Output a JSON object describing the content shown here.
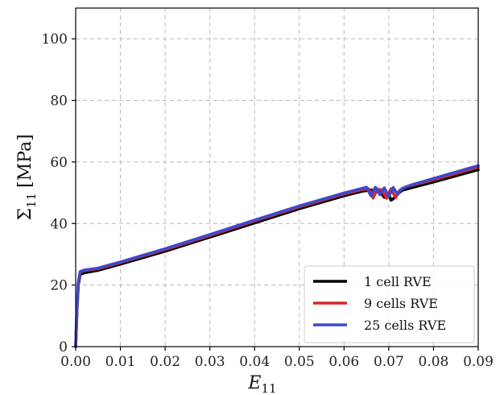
{
  "chart_data": {
    "type": "line",
    "title": "",
    "xlabel_main": "E",
    "xlabel_sub": "11",
    "ylabel_main": "Σ",
    "ylabel_sub": "11",
    "ylabel_unit": "[MPa]",
    "xlim": [
      0,
      0.09
    ],
    "ylim": [
      0,
      110
    ],
    "xticks": [
      "0.00",
      "0.01",
      "0.02",
      "0.03",
      "0.04",
      "0.05",
      "0.06",
      "0.07",
      "0.08",
      "0.09"
    ],
    "yticks": [
      "0",
      "20",
      "40",
      "60",
      "80",
      "100"
    ],
    "xtick_values": [
      0,
      0.01,
      0.02,
      0.03,
      0.04,
      0.05,
      0.06,
      0.07,
      0.08,
      0.09
    ],
    "ytick_values": [
      0,
      20,
      40,
      60,
      80,
      100
    ],
    "grid": true,
    "legend_position": "bottom-right",
    "series": [
      {
        "name": "1 cell RVE",
        "color": "#000000",
        "points": [
          [
            0,
            0
          ],
          [
            0.0003,
            12
          ],
          [
            0.0006,
            20
          ],
          [
            0.001,
            23.5
          ],
          [
            0.002,
            24.0
          ],
          [
            0.005,
            24.8
          ],
          [
            0.01,
            26.8
          ],
          [
            0.02,
            31.0
          ],
          [
            0.03,
            35.6
          ],
          [
            0.04,
            40.2
          ],
          [
            0.05,
            44.8
          ],
          [
            0.06,
            49.0
          ],
          [
            0.064,
            50.5
          ],
          [
            0.066,
            50.9
          ],
          [
            0.068,
            50.5
          ],
          [
            0.069,
            48.5
          ],
          [
            0.07,
            49.5
          ],
          [
            0.0705,
            47.6
          ],
          [
            0.071,
            48.0
          ],
          [
            0.072,
            49.6
          ],
          [
            0.073,
            50.8
          ],
          [
            0.075,
            51.6
          ],
          [
            0.08,
            53.5
          ],
          [
            0.09,
            57.5
          ]
        ]
      },
      {
        "name": "9 cells RVE",
        "color": "#d62728",
        "points": [
          [
            0,
            0
          ],
          [
            0.0003,
            12.5
          ],
          [
            0.0006,
            20.5
          ],
          [
            0.001,
            24.2
          ],
          [
            0.002,
            24.7
          ],
          [
            0.005,
            25.3
          ],
          [
            0.01,
            27.3
          ],
          [
            0.02,
            31.5
          ],
          [
            0.03,
            36.1
          ],
          [
            0.04,
            40.8
          ],
          [
            0.05,
            45.4
          ],
          [
            0.06,
            49.6
          ],
          [
            0.064,
            51.0
          ],
          [
            0.0655,
            51.3
          ],
          [
            0.0665,
            48.3
          ],
          [
            0.0675,
            51.2
          ],
          [
            0.0685,
            50.8
          ],
          [
            0.0695,
            48.2
          ],
          [
            0.0705,
            51.3
          ],
          [
            0.0715,
            48.4
          ],
          [
            0.0725,
            50.9
          ],
          [
            0.074,
            52.0
          ],
          [
            0.08,
            54.2
          ],
          [
            0.09,
            58.3
          ]
        ]
      },
      {
        "name": "25 cells RVE",
        "color": "#3f48cc",
        "points": [
          [
            0,
            0
          ],
          [
            0.0003,
            13
          ],
          [
            0.0006,
            21
          ],
          [
            0.001,
            24.4
          ],
          [
            0.002,
            24.9
          ],
          [
            0.005,
            25.5
          ],
          [
            0.01,
            27.5
          ],
          [
            0.02,
            31.8
          ],
          [
            0.03,
            36.4
          ],
          [
            0.04,
            41.1
          ],
          [
            0.05,
            45.7
          ],
          [
            0.06,
            49.9
          ],
          [
            0.064,
            51.4
          ],
          [
            0.065,
            51.8
          ],
          [
            0.066,
            49.0
          ],
          [
            0.067,
            51.8
          ],
          [
            0.068,
            49.4
          ],
          [
            0.069,
            51.6
          ],
          [
            0.07,
            48.8
          ],
          [
            0.071,
            51.7
          ],
          [
            0.072,
            49.5
          ],
          [
            0.073,
            51.4
          ],
          [
            0.075,
            52.5
          ],
          [
            0.08,
            54.6
          ],
          [
            0.09,
            58.8
          ]
        ]
      }
    ]
  }
}
